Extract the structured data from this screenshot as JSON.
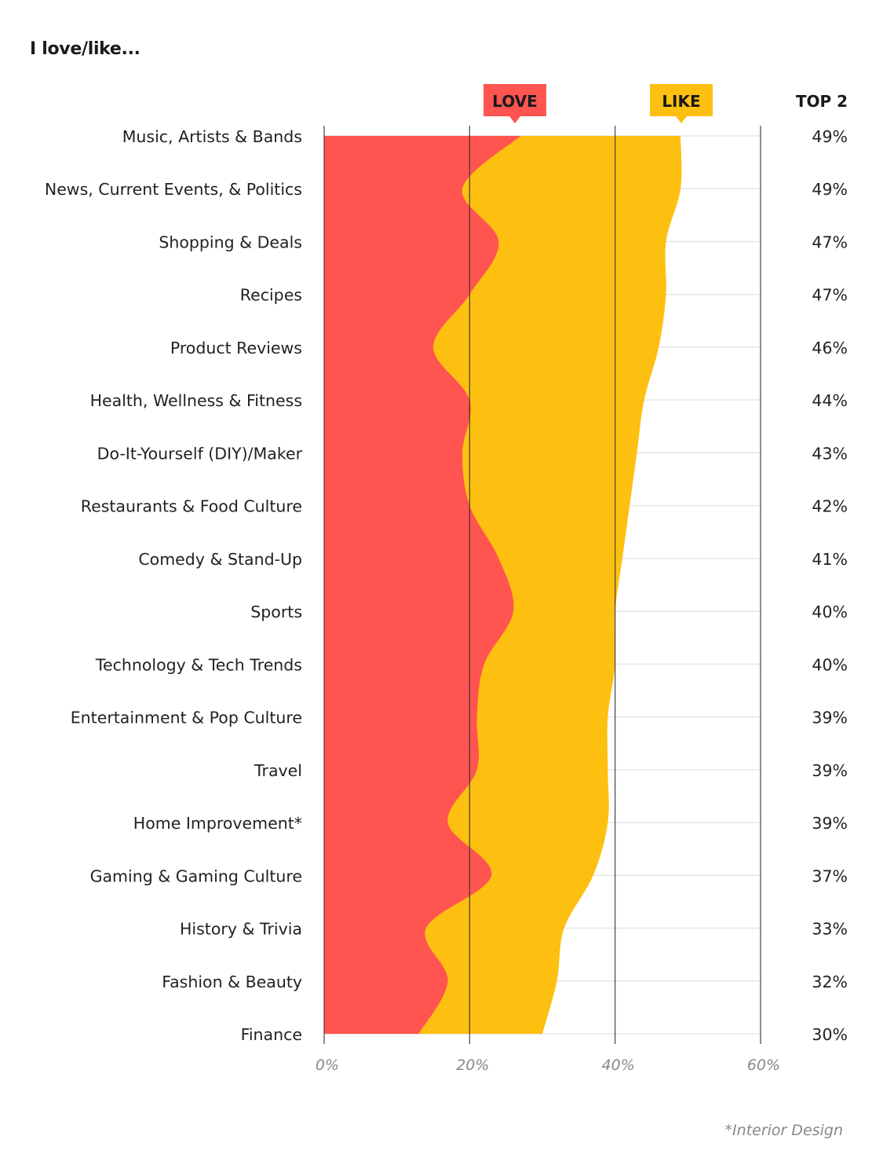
{
  "title": "I love/like...",
  "footnote": "*Interior Design",
  "colors": {
    "love": "#FF5450",
    "like": "#FDC010",
    "grid": "#e6e6e6",
    "axis": "#333333",
    "label_text": "#222222",
    "tick_text": "#888888"
  },
  "chart_data": {
    "type": "area",
    "orientation": "horizontal",
    "title": "I love/like...",
    "xlabel": "",
    "ylabel": "",
    "xlim": [
      0,
      60
    ],
    "xticks": [
      0,
      20,
      40,
      60
    ],
    "xtick_labels": [
      "0%",
      "20%",
      "40%",
      "60%"
    ],
    "grid": true,
    "legend": {
      "placement": "top",
      "entries": [
        "LOVE",
        "LIKE"
      ]
    },
    "right_column_header": "TOP 2",
    "categories": [
      "Music, Artists & Bands",
      "News, Current Events, & Politics",
      "Shopping & Deals",
      "Recipes",
      "Product Reviews",
      "Health, Wellness & Fitness",
      "Do-It-Yourself (DIY)/Maker",
      "Restaurants & Food Culture",
      "Comedy & Stand-Up",
      "Sports",
      "Technology & Tech Trends",
      "Entertainment & Pop Culture",
      "Travel",
      "Home Improvement*",
      "Gaming & Gaming Culture",
      "History & Trivia",
      "Fashion & Beauty",
      "Finance"
    ],
    "series": [
      {
        "name": "LOVE",
        "values": [
          27,
          19,
          24,
          20,
          15,
          20,
          19,
          20,
          24,
          26,
          22,
          21,
          21,
          17,
          23,
          14,
          17,
          13
        ]
      },
      {
        "name": "TOP 2 (LOVE + LIKE)",
        "values": [
          49,
          49,
          47,
          47,
          46,
          44,
          43,
          42,
          41,
          40,
          40,
          39,
          39,
          39,
          37,
          33,
          32,
          30
        ]
      }
    ],
    "top2_labels": [
      "49%",
      "49%",
      "47%",
      "47%",
      "46%",
      "44%",
      "43%",
      "42%",
      "41%",
      "40%",
      "40%",
      "39%",
      "39%",
      "39%",
      "37%",
      "33%",
      "32%",
      "30%"
    ]
  }
}
